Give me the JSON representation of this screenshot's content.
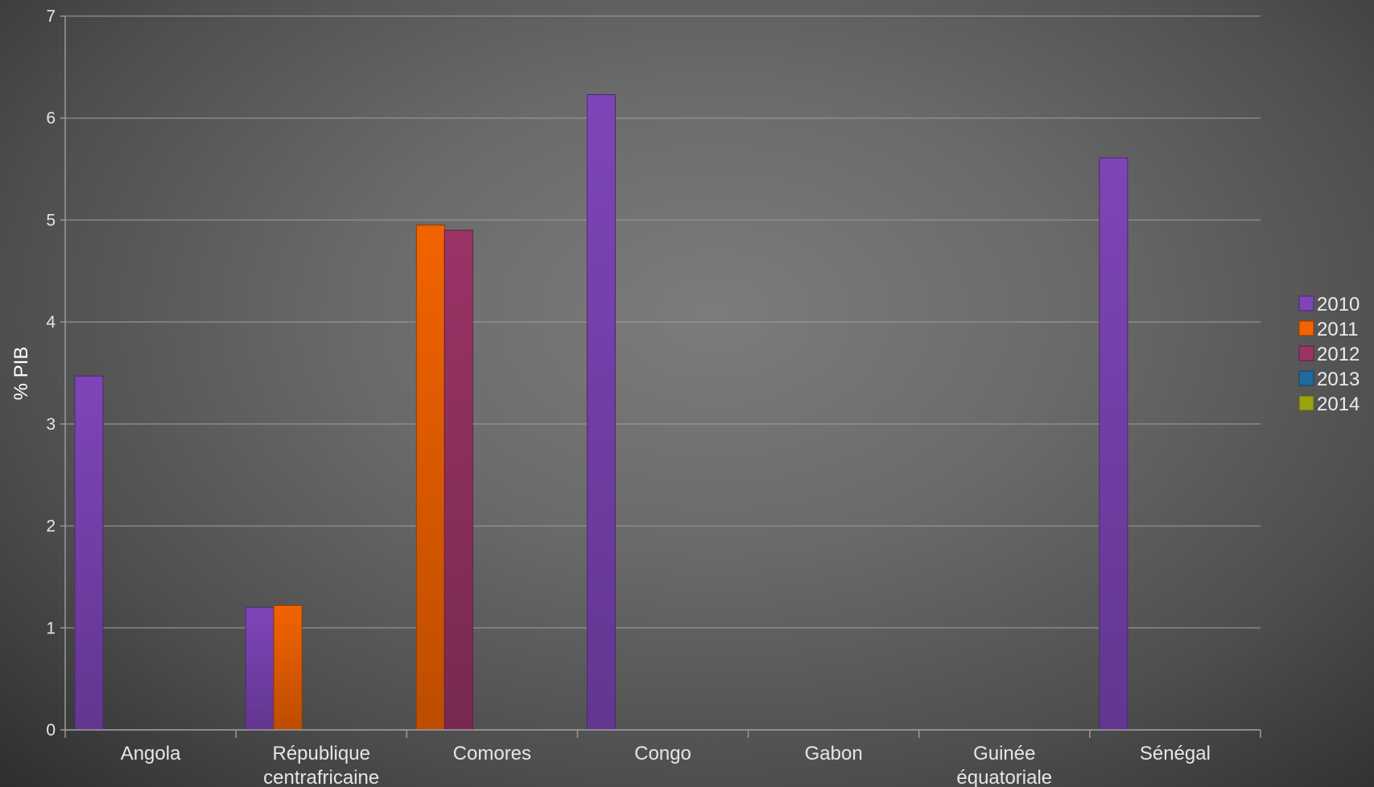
{
  "chart_data": {
    "type": "bar",
    "title": "",
    "xlabel": "",
    "ylabel": "% PIB",
    "ylim": [
      0,
      7
    ],
    "yticks": [
      0,
      1,
      2,
      3,
      4,
      5,
      6,
      7
    ],
    "grid": true,
    "legend_position": "right",
    "categories": [
      [
        "Angola"
      ],
      [
        "République",
        "centrafricaine"
      ],
      [
        "Comores"
      ],
      [
        "Congo"
      ],
      [
        "Gabon"
      ],
      [
        "Guinée",
        "équatoriale"
      ],
      [
        "Sénégal"
      ]
    ],
    "series": [
      {
        "name": "2010",
        "color": "#7e45b8",
        "values": [
          3.47,
          1.2,
          null,
          6.23,
          null,
          null,
          5.61
        ]
      },
      {
        "name": "2011",
        "color": "#f26300",
        "values": [
          null,
          1.22,
          4.95,
          null,
          null,
          null,
          null
        ]
      },
      {
        "name": "2012",
        "color": "#9a3466",
        "values": [
          null,
          null,
          4.9,
          null,
          null,
          null,
          null
        ]
      },
      {
        "name": "2013",
        "color": "#1f6aa0",
        "values": [
          null,
          null,
          null,
          null,
          null,
          null,
          null
        ]
      },
      {
        "name": "2014",
        "color": "#9aa312",
        "values": [
          null,
          null,
          null,
          null,
          null,
          null,
          null
        ]
      }
    ]
  }
}
